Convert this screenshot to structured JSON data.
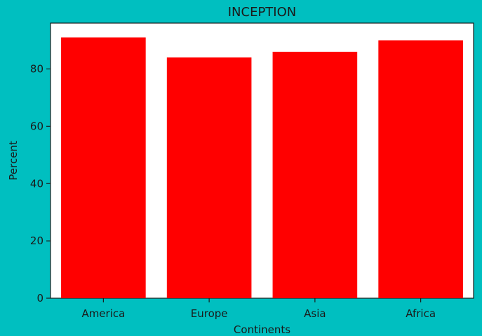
{
  "chart_data": {
    "type": "bar",
    "title": "INCEPTION",
    "xlabel": "Continents",
    "ylabel": "Percent",
    "categories": [
      "America",
      "Europe",
      "Asia",
      "Africa"
    ],
    "values": [
      91,
      84,
      86,
      90
    ],
    "ylim": [
      0,
      96
    ],
    "yticks": [
      0,
      20,
      40,
      60,
      80
    ],
    "bar_color": "#FF0000",
    "plot_background": "#FFFFFF",
    "figure_background": "#00BFC0",
    "grid": false,
    "legend": "none"
  }
}
